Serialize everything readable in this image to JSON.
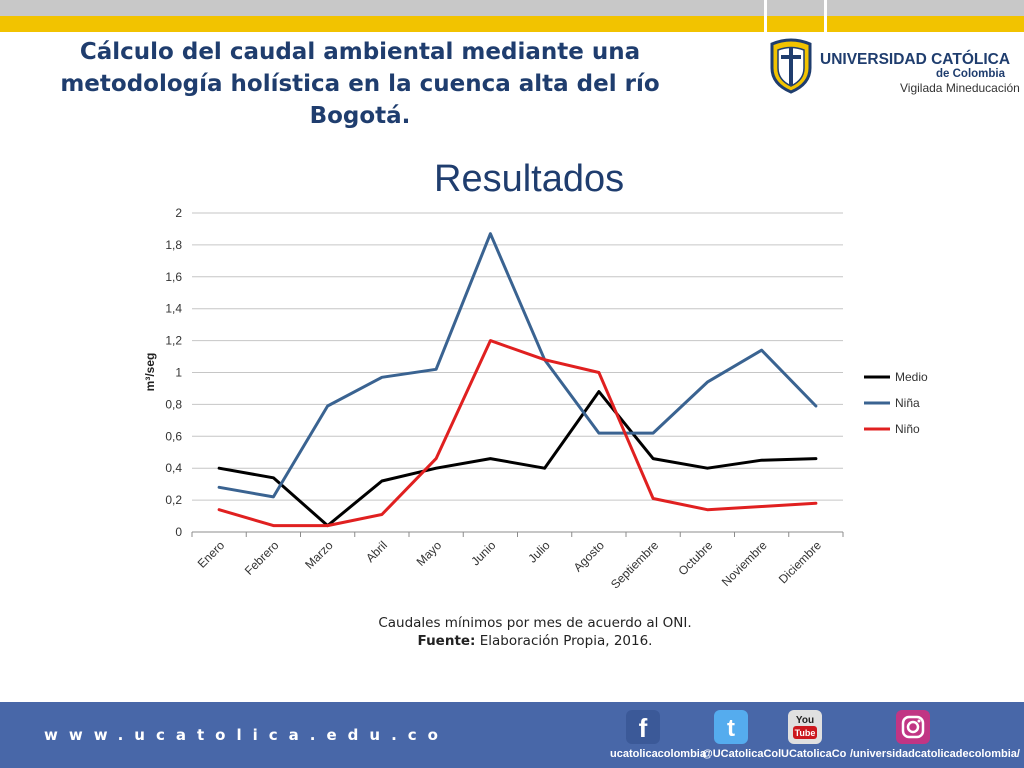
{
  "slide": {
    "title": "Cálculo del caudal ambiental mediante una metodología holística en la cuenca alta del río Bogotá.",
    "section_title": "Resultados"
  },
  "logo": {
    "name_part1": "UNIVERSIDAD ",
    "name_part2": "CATÓLICA",
    "sub": "de Colombia",
    "tagline": "Vigilada Mineducación"
  },
  "caption": {
    "line1": "Caudales mínimos por mes de acuerdo al ONI.",
    "source_label": "Fuente:",
    "source_text": " Elaboración Propia, 2016."
  },
  "footer": {
    "url": "www.ucatolica.edu.co",
    "social": [
      {
        "icon": "facebook-icon",
        "label": "ucatolicacolombia",
        "color": "#3b5998"
      },
      {
        "icon": "twitter-icon",
        "label": "@UCatolicaCol",
        "color": "#55acee"
      },
      {
        "icon": "youtube-icon",
        "label": "UCatolicaCo",
        "color": "#e0e0e0"
      },
      {
        "icon": "instagram-icon",
        "label": "/universidadcatolicadecolombia/",
        "color": "#c13584"
      }
    ]
  },
  "colors": {
    "title": "#1f3d6e",
    "footer_bg": "#4867a8",
    "accent_yellow": "#f2c300"
  },
  "chart_data": {
    "type": "line",
    "title": "",
    "xlabel": "",
    "ylabel": "m³/seg",
    "ylim": [
      0,
      2
    ],
    "yticks": [
      0,
      0.2,
      0.4,
      0.6,
      0.8,
      1,
      1.2,
      1.4,
      1.6,
      1.8,
      2
    ],
    "ytick_labels": [
      "0",
      "0,2",
      "0,4",
      "0,6",
      "0,8",
      "1",
      "1,2",
      "1,4",
      "1,6",
      "1,8",
      "2"
    ],
    "grid": true,
    "legend_position": "right",
    "categories": [
      "Enero",
      "Febrero",
      "Marzo",
      "Abril",
      "Mayo",
      "Junio",
      "Julio",
      "Agosto",
      "Septiembre",
      "Octubre",
      "Noviembre",
      "Diciembre"
    ],
    "series": [
      {
        "name": "Medio",
        "color": "#000000",
        "values": [
          0.4,
          0.34,
          0.04,
          0.32,
          0.4,
          0.46,
          0.4,
          0.88,
          0.46,
          0.4,
          0.45,
          0.46
        ]
      },
      {
        "name": "Niña",
        "color": "#3a6391",
        "values": [
          0.28,
          0.22,
          0.79,
          0.97,
          1.02,
          1.87,
          1.08,
          0.62,
          0.62,
          0.94,
          1.14,
          0.79
        ]
      },
      {
        "name": "Niño",
        "color": "#e02020",
        "values": [
          0.14,
          0.04,
          0.04,
          0.11,
          0.46,
          1.2,
          1.08,
          1.0,
          0.21,
          0.14,
          0.16,
          0.18
        ]
      }
    ]
  }
}
